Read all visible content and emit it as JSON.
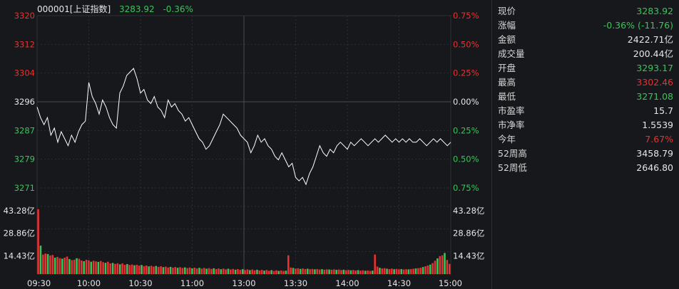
{
  "header": {
    "code_name": "000001[上证指数]",
    "price": "3283.92",
    "change_pct": "-0.36%"
  },
  "colors": {
    "up": "#e83232",
    "down": "#3cc45a",
    "neutral": "#e6e6e6",
    "line": "#ffffff",
    "grid": "#2c2f35"
  },
  "chart_data": {
    "type": "line",
    "title": "000001[上证指数]",
    "x_ticks": [
      "09:30",
      "10:00",
      "10:30",
      "11:00",
      "13:00",
      "13:30",
      "14:00",
      "14:30",
      "15:00"
    ],
    "y_left_ticks": [
      "3320",
      "3312",
      "3304",
      "3296",
      "3287",
      "3279",
      "3271"
    ],
    "y_right_ticks": [
      "0.75%",
      "0.50%",
      "0.25%",
      "0.00%",
      "0.25%",
      "0.50%",
      "0.75%"
    ],
    "volume_ticks": [
      "43.28亿",
      "28.86亿",
      "14.43亿"
    ],
    "ylim": [
      3271,
      3320
    ],
    "x_range_minutes": [
      0,
      240
    ],
    "series": [
      {
        "x": [
          0,
          2,
          4,
          6,
          8,
          10,
          12,
          14,
          16,
          18,
          20,
          22,
          24,
          26,
          28,
          30,
          32,
          34,
          36,
          38,
          40,
          42,
          44,
          46,
          48,
          50,
          52,
          54,
          56,
          58,
          60,
          62,
          64,
          66,
          68,
          70,
          72,
          74,
          76,
          78,
          80,
          82,
          84,
          86,
          88,
          90,
          92,
          94,
          96,
          98,
          100,
          102,
          104,
          106,
          108,
          110,
          112,
          114,
          116,
          118,
          120,
          122,
          124,
          126,
          128,
          130,
          132,
          134,
          136,
          138,
          140,
          142,
          144,
          146,
          148,
          150,
          152,
          154,
          156,
          158,
          160,
          162,
          164,
          166,
          168,
          170,
          172,
          174,
          176,
          178,
          180,
          182,
          184,
          186,
          188,
          190,
          192,
          194,
          196,
          198,
          200,
          202,
          204,
          206,
          208,
          210,
          212,
          214,
          216,
          218,
          220,
          222,
          224,
          226,
          228,
          230,
          232,
          234,
          236,
          238,
          240
        ],
        "y": [
          3294,
          3291,
          3289,
          3291,
          3286,
          3288,
          3284,
          3287,
          3285,
          3283,
          3286,
          3284,
          3287,
          3289,
          3290,
          3301,
          3297,
          3295,
          3292,
          3296,
          3294,
          3291,
          3289,
          3288,
          3298,
          3300,
          3303,
          3304,
          3305,
          3302,
          3298,
          3299,
          3296,
          3295,
          3297,
          3294,
          3293,
          3291,
          3296,
          3294,
          3295,
          3293,
          3292,
          3290,
          3291,
          3289,
          3287,
          3285,
          3284,
          3282,
          3283,
          3285,
          3287,
          3289,
          3292,
          3291,
          3290,
          3289,
          3288,
          3286,
          3285,
          3284,
          3281,
          3283,
          3286,
          3284,
          3285,
          3283,
          3282,
          3280,
          3279,
          3281,
          3279,
          3277,
          3278,
          3274,
          3273,
          3274,
          3272,
          3275,
          3277,
          3280,
          3283,
          3281,
          3280,
          3282,
          3281,
          3283,
          3284,
          3283,
          3282,
          3284,
          3283,
          3284,
          3285,
          3284,
          3283,
          3284,
          3285,
          3284,
          3285,
          3286,
          3285,
          3284,
          3285,
          3284,
          3285,
          3284,
          3285,
          3284,
          3284,
          3285,
          3284,
          3283,
          3284,
          3285,
          3284,
          3285,
          3284,
          3283,
          3284
        ],
        "color": "#ffffff"
      }
    ],
    "volume": {
      "max": 43.28,
      "values": [
        41.5,
        18.2,
        12.5,
        13.1,
        12.8,
        11.9,
        12.2,
        10.5,
        11.0,
        10.2,
        9.8,
        10.5,
        11.2,
        9.6,
        8.9,
        9.2,
        10.1,
        9.8,
        8.7,
        8.2,
        9.1,
        8.8,
        7.9,
        8.5,
        8.1,
        7.8,
        8.4,
        7.6,
        7.2,
        7.9,
        6.8,
        7.1,
        6.5,
        6.9,
        6.2,
        6.8,
        5.9,
        6.4,
        5.8,
        6.1,
        5.6,
        5.9,
        5.4,
        5.8,
        5.1,
        5.5,
        4.9,
        5.3,
        4.8,
        5.2,
        4.6,
        5.0,
        4.4,
        4.8,
        4.2,
        4.6,
        4.1,
        4.5,
        4.0,
        4.4,
        3.9,
        4.3,
        3.8,
        4.2,
        3.7,
        4.1,
        3.6,
        4.0,
        3.5,
        3.9,
        3.4,
        3.8,
        3.3,
        3.7,
        3.2,
        3.6,
        3.1,
        3.5,
        3.0,
        3.4,
        2.9,
        3.3,
        2.8,
        3.2,
        2.7,
        3.1,
        2.6,
        3.0,
        2.5,
        2.9,
        2.4,
        2.8,
        2.3,
        2.7,
        2.2,
        2.6,
        2.1,
        2.5,
        2.0,
        2.4,
        2.0,
        2.3,
        2.0,
        2.2,
        12.0,
        4.2,
        3.9,
        3.5,
        3.7,
        3.3,
        3.6,
        3.2,
        3.4,
        3.1,
        3.3,
        3.0,
        3.2,
        2.9,
        3.1,
        2.8,
        3.0,
        2.9,
        2.8,
        3.0,
        2.7,
        2.9,
        2.6,
        2.8,
        2.5,
        2.7,
        2.4,
        2.6,
        2.3,
        2.5,
        2.2,
        2.4,
        2.1,
        2.3,
        2.0,
        2.2,
        12.5,
        4.8,
        4.0,
        3.6,
        3.8,
        3.4,
        3.2,
        3.5,
        3.1,
        3.3,
        3.0,
        3.2,
        2.9,
        3.1,
        3.0,
        3.2,
        3.4,
        3.6,
        3.8,
        4.0,
        4.5,
        5.0,
        5.5,
        6.0,
        7.0,
        8.5,
        10.0,
        11.5,
        12.0,
        13.5,
        9.0,
        6.5
      ]
    }
  },
  "quote": [
    {
      "label": "现价",
      "value": "3283.92",
      "tone": "down"
    },
    {
      "label": "涨幅",
      "value": "-0.36% (-11.76)",
      "tone": "down"
    },
    {
      "label": "金额",
      "value": "2422.71亿",
      "tone": "neutral"
    },
    {
      "label": "成交量",
      "value": "200.44亿",
      "tone": "neutral"
    },
    {
      "label": "开盘",
      "value": "3293.17",
      "tone": "down"
    },
    {
      "label": "最高",
      "value": "3302.46",
      "tone": "up"
    },
    {
      "label": "最低",
      "value": "3271.08",
      "tone": "down"
    },
    {
      "label": "市盈率",
      "value": "15.7",
      "tone": "neutral"
    },
    {
      "label": "市净率",
      "value": "1.5539",
      "tone": "neutral"
    },
    {
      "label": "今年",
      "value": "7.67%",
      "tone": "up"
    },
    {
      "label": "52周高",
      "value": "3458.79",
      "tone": "neutral"
    },
    {
      "label": "52周低",
      "value": "2646.80",
      "tone": "neutral"
    }
  ]
}
